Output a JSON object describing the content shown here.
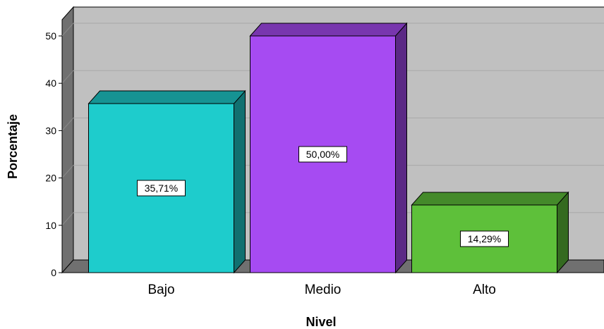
{
  "chart_data": {
    "type": "bar",
    "categories": [
      "Bajo",
      "Medio",
      "Alto"
    ],
    "values": [
      35.71,
      50.0,
      14.29
    ],
    "data_labels": [
      "35,71%",
      "50,00%",
      "14,29%"
    ],
    "colors": {
      "Bajo": "#1ecccc",
      "Medio": "#a64bf2",
      "Alto": "#5ec03a",
      "plot_background": "#c0c0c0",
      "wall": "#707070"
    },
    "xlabel": "Nivel",
    "ylabel": "Porcentaje",
    "ylim": [
      0,
      52
    ],
    "yticks": [
      0,
      10,
      20,
      30,
      40,
      50
    ],
    "grid": true,
    "style": "3d"
  }
}
